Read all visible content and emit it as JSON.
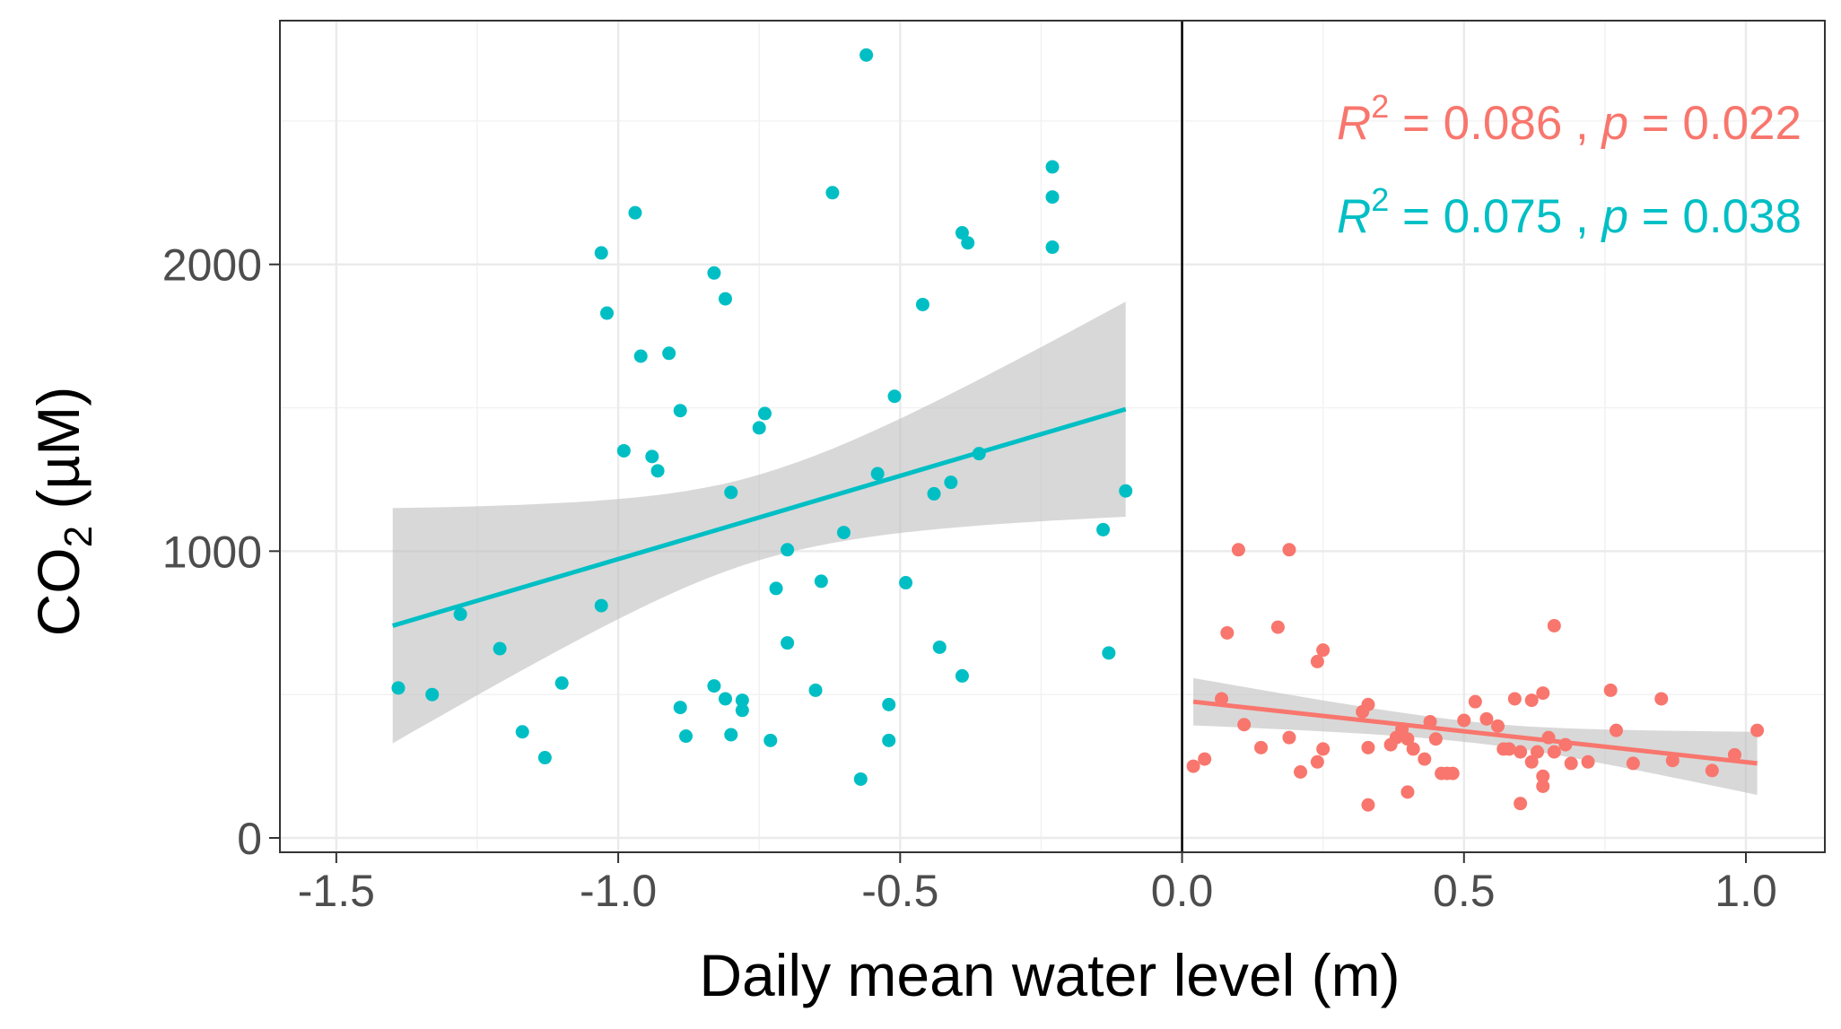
{
  "chart_data": {
    "type": "scatter",
    "xlabel": "Daily mean water level (m)",
    "ylabel": {
      "main": "CO",
      "sub": "2",
      "unit": " (µM)"
    },
    "xlim": [
      -1.6,
      1.14
    ],
    "ylim": [
      -50,
      2850
    ],
    "x_ticks": [
      {
        "value": -1.5,
        "label": "-1.5"
      },
      {
        "value": -1.0,
        "label": "-1.0"
      },
      {
        "value": -0.5,
        "label": "-0.5"
      },
      {
        "value": 0.0,
        "label": "0.0"
      },
      {
        "value": 0.5,
        "label": "0.5"
      },
      {
        "value": 1.0,
        "label": "1.0"
      }
    ],
    "y_ticks": [
      {
        "value": 0,
        "label": "0"
      },
      {
        "value": 1000,
        "label": "1000"
      },
      {
        "value": 2000,
        "label": "2000"
      }
    ],
    "minor_x": [
      -1.25,
      -0.75,
      -0.25,
      0.25,
      0.75
    ],
    "minor_y": [
      500,
      1500,
      2500
    ],
    "grid": true,
    "vline_x": 0,
    "series": [
      {
        "color": "#00BFC4",
        "points": [
          [
            -1.39,
            523
          ],
          [
            -1.33,
            500
          ],
          [
            -1.28,
            780
          ],
          [
            -1.21,
            660
          ],
          [
            -1.17,
            370
          ],
          [
            -1.13,
            280
          ],
          [
            -1.1,
            540
          ],
          [
            -1.03,
            810
          ],
          [
            -1.03,
            2040
          ],
          [
            -1.02,
            1830
          ],
          [
            -0.99,
            1350
          ],
          [
            -0.97,
            2180
          ],
          [
            -0.96,
            1680
          ],
          [
            -0.94,
            1330
          ],
          [
            -0.93,
            1280
          ],
          [
            -0.91,
            1690
          ],
          [
            -0.89,
            1490
          ],
          [
            -0.89,
            455
          ],
          [
            -0.88,
            355
          ],
          [
            -0.83,
            530
          ],
          [
            -0.83,
            1970
          ],
          [
            -0.81,
            485
          ],
          [
            -0.81,
            1880
          ],
          [
            -0.8,
            1205
          ],
          [
            -0.8,
            360
          ],
          [
            -0.78,
            445
          ],
          [
            -0.78,
            480
          ],
          [
            -0.75,
            1430
          ],
          [
            -0.74,
            1480
          ],
          [
            -0.73,
            340
          ],
          [
            -0.72,
            870
          ],
          [
            -0.7,
            1005
          ],
          [
            -0.7,
            680
          ],
          [
            -0.65,
            515
          ],
          [
            -0.64,
            895
          ],
          [
            -0.62,
            2250
          ],
          [
            -0.6,
            1065
          ],
          [
            -0.57,
            205
          ],
          [
            -0.56,
            2730
          ],
          [
            -0.54,
            1270
          ],
          [
            -0.52,
            465
          ],
          [
            -0.52,
            340
          ],
          [
            -0.51,
            1540
          ],
          [
            -0.49,
            890
          ],
          [
            -0.46,
            1860
          ],
          [
            -0.44,
            1200
          ],
          [
            -0.43,
            665
          ],
          [
            -0.41,
            1240
          ],
          [
            -0.39,
            2110
          ],
          [
            -0.39,
            565
          ],
          [
            -0.38,
            2075
          ],
          [
            -0.36,
            1340
          ],
          [
            -0.23,
            2340
          ],
          [
            -0.23,
            2235
          ],
          [
            -0.23,
            2060
          ],
          [
            -0.14,
            1075
          ],
          [
            -0.13,
            645
          ],
          [
            -0.1,
            1210
          ]
        ],
        "fit": {
          "x": [
            -1.4,
            -0.1
          ],
          "y": [
            740,
            1495
          ]
        },
        "band": {
          "x_edges": [
            -1.4,
            -0.1
          ],
          "upper": [
            1150,
            1870
          ],
          "lower": [
            330,
            1120
          ]
        }
      },
      {
        "color": "#F8766D",
        "points": [
          [
            0.02,
            250
          ],
          [
            0.04,
            275
          ],
          [
            0.07,
            485
          ],
          [
            0.08,
            715
          ],
          [
            0.1,
            1005
          ],
          [
            0.11,
            395
          ],
          [
            0.14,
            315
          ],
          [
            0.17,
            735
          ],
          [
            0.19,
            1005
          ],
          [
            0.19,
            350
          ],
          [
            0.21,
            230
          ],
          [
            0.24,
            265
          ],
          [
            0.24,
            615
          ],
          [
            0.25,
            655
          ],
          [
            0.25,
            310
          ],
          [
            0.32,
            440
          ],
          [
            0.33,
            465
          ],
          [
            0.33,
            315
          ],
          [
            0.33,
            115
          ],
          [
            0.37,
            325
          ],
          [
            0.38,
            350
          ],
          [
            0.39,
            380
          ],
          [
            0.39,
            360
          ],
          [
            0.4,
            345
          ],
          [
            0.4,
            160
          ],
          [
            0.41,
            310
          ],
          [
            0.43,
            275
          ],
          [
            0.44,
            405
          ],
          [
            0.45,
            345
          ],
          [
            0.46,
            225
          ],
          [
            0.47,
            225
          ],
          [
            0.48,
            225
          ],
          [
            0.5,
            410
          ],
          [
            0.52,
            475
          ],
          [
            0.54,
            415
          ],
          [
            0.56,
            390
          ],
          [
            0.57,
            310
          ],
          [
            0.58,
            310
          ],
          [
            0.59,
            485
          ],
          [
            0.6,
            300
          ],
          [
            0.6,
            120
          ],
          [
            0.62,
            265
          ],
          [
            0.62,
            480
          ],
          [
            0.63,
            300
          ],
          [
            0.64,
            505
          ],
          [
            0.64,
            215
          ],
          [
            0.64,
            180
          ],
          [
            0.65,
            350
          ],
          [
            0.66,
            300
          ],
          [
            0.66,
            740
          ],
          [
            0.68,
            325
          ],
          [
            0.69,
            260
          ],
          [
            0.72,
            265
          ],
          [
            0.76,
            515
          ],
          [
            0.77,
            375
          ],
          [
            0.8,
            260
          ],
          [
            0.85,
            485
          ],
          [
            0.87,
            270
          ],
          [
            0.94,
            235
          ],
          [
            0.98,
            290
          ],
          [
            1.02,
            375
          ]
        ],
        "fit": {
          "x": [
            0.02,
            1.02
          ],
          "y": [
            475,
            260
          ]
        },
        "band": {
          "x_edges": [
            0.02,
            1.02
          ],
          "upper": [
            560,
            380
          ],
          "lower": [
            395,
            160
          ]
        }
      }
    ],
    "annotations": [
      {
        "color": "#F8766D",
        "r_label": "R",
        "sup": "2",
        "eq": " = 0.086 , ",
        "p_label": "p",
        "p_eq": " = 0.022"
      },
      {
        "color": "#00BFC4",
        "r_label": "R",
        "sup": "2",
        "eq": " = 0.075 , ",
        "p_label": "p",
        "p_eq": " = 0.038"
      }
    ],
    "band_color": "#BEBEBE"
  }
}
